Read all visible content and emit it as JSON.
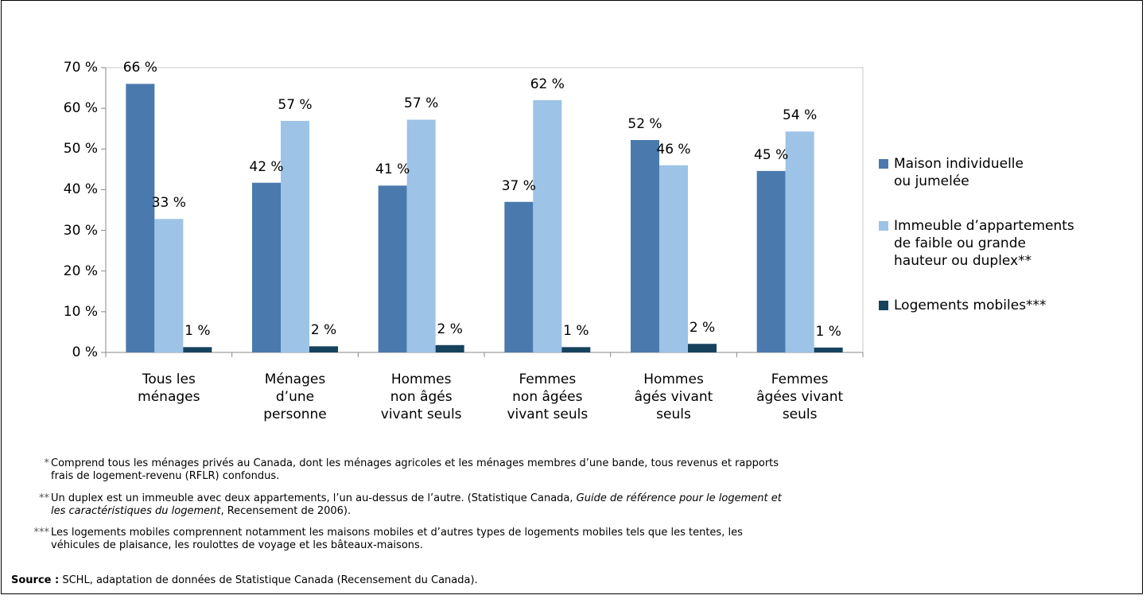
{
  "chart_data": {
    "type": "bar",
    "categories": [
      "Tous les\nménages",
      "Ménages\nd’une\npersonne",
      "Hommes\nnon âgés\nvivant seuls",
      "Femmes\nnon âgées\nvivant seuls",
      "Hommes\nâgés vivant\nseuls",
      "Femmes\nâgées vivant\nseuls"
    ],
    "series": [
      {
        "name": "Maison individuelle\nou jumelée",
        "color": "#4a7aad",
        "values": [
          66,
          41.7,
          41,
          37,
          52.2,
          44.6
        ],
        "value_labels": [
          "66 %",
          "42 %",
          "41 %",
          "37 %",
          "52 %",
          "45 %"
        ]
      },
      {
        "name": "Immeuble d’appartements\nde faible ou grande\nhauteur ou duplex**",
        "color": "#9dc3e6",
        "values": [
          32.8,
          56.9,
          57.2,
          62,
          46,
          54.3
        ],
        "value_labels": [
          "33 %",
          "57 %",
          "57 %",
          "62 %",
          "46 %",
          "54 %"
        ]
      },
      {
        "name": "Logements mobiles***",
        "color": "#17425e",
        "values": [
          1.3,
          1.5,
          1.8,
          1.3,
          2.1,
          1.2
        ],
        "value_labels": [
          "1 %",
          "2 %",
          "2 %",
          "1 %",
          "2 %",
          "1 %"
        ]
      }
    ],
    "ylim": [
      0,
      70
    ],
    "yticks": [
      {
        "value": 0,
        "label": "0 %"
      },
      {
        "value": 10,
        "label": "10 %"
      },
      {
        "value": 20,
        "label": "20 %"
      },
      {
        "value": 30,
        "label": "30 %"
      },
      {
        "value": 40,
        "label": "40 %"
      },
      {
        "value": 50,
        "label": "50 %"
      },
      {
        "value": 60,
        "label": "60 %"
      },
      {
        "value": 70,
        "label": "70 %"
      }
    ],
    "grid": false,
    "legend": "right"
  },
  "notes": [
    {
      "marker": "*",
      "text": "Comprend tous les ménages privés au Canada, dont les ménages agricoles et les ménages membres d’une bande, tous revenus et rapports\nfrais de logement-revenu (RFLR) confondus."
    },
    {
      "marker": "**",
      "text": "Un duplex est un immeuble avec deux appartements, l’un au-dessus de l’autre. (Statistique Canada, ",
      "italic": "Guide de référence pour le logement et\nles caractéristiques du logement",
      "after": ", Recensement de 2006)."
    },
    {
      "marker": "***",
      "text": "Les logements mobiles comprennent notamment les maisons mobiles et d’autres types de logements mobiles tels que les tentes, les\nvéhicules de plaisance, les roulottes de voyage et les bâteaux-maisons."
    }
  ],
  "source": {
    "label": "Source :",
    "text": " SCHL, adaptation de données de Statistique Canada (Recensement du Canada)."
  }
}
